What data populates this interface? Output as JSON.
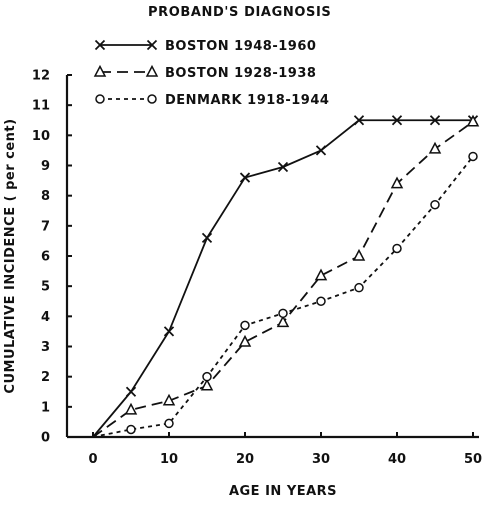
{
  "chart_data": {
    "type": "line",
    "title": "",
    "xlabel": "AGE IN YEARS",
    "ylabel": "CUMULATIVE INCIDENCE ( per cent)",
    "xlim": [
      0,
      50
    ],
    "ylim": [
      0,
      12
    ],
    "x_ticks": [
      0,
      10,
      20,
      30,
      40,
      50
    ],
    "y_ticks": [
      0,
      1,
      2,
      3,
      4,
      5,
      6,
      7,
      8,
      9,
      10,
      11,
      12
    ],
    "grid": false,
    "legend": {
      "title": "PROBAND'S DIAGNOSIS",
      "placement": "top-left"
    },
    "series": [
      {
        "name": "BOSTON 1948-1960",
        "marker": "x",
        "line_style": "solid",
        "x": [
          0,
          5,
          10,
          15,
          20,
          25,
          30,
          35,
          40,
          45,
          50
        ],
        "values": [
          0,
          1.5,
          3.5,
          6.6,
          8.6,
          8.95,
          9.5,
          10.5,
          10.5,
          10.5,
          10.5
        ]
      },
      {
        "name": "BOSTON 1928-1938",
        "marker": "triangle",
        "line_style": "long-dash",
        "x": [
          0,
          5,
          10,
          15,
          20,
          25,
          30,
          35,
          40,
          45,
          50
        ],
        "values": [
          0,
          0.9,
          1.2,
          1.7,
          3.15,
          3.8,
          5.35,
          6.0,
          8.4,
          9.55,
          10.45
        ]
      },
      {
        "name": "DENMARK 1918-1944",
        "marker": "circle",
        "line_style": "short-dash",
        "x": [
          0,
          5,
          10,
          15,
          20,
          25,
          30,
          35,
          40,
          45,
          50
        ],
        "values": [
          0,
          0.25,
          0.45,
          2.0,
          3.7,
          4.1,
          4.5,
          4.95,
          6.25,
          7.7,
          9.3
        ]
      }
    ]
  }
}
